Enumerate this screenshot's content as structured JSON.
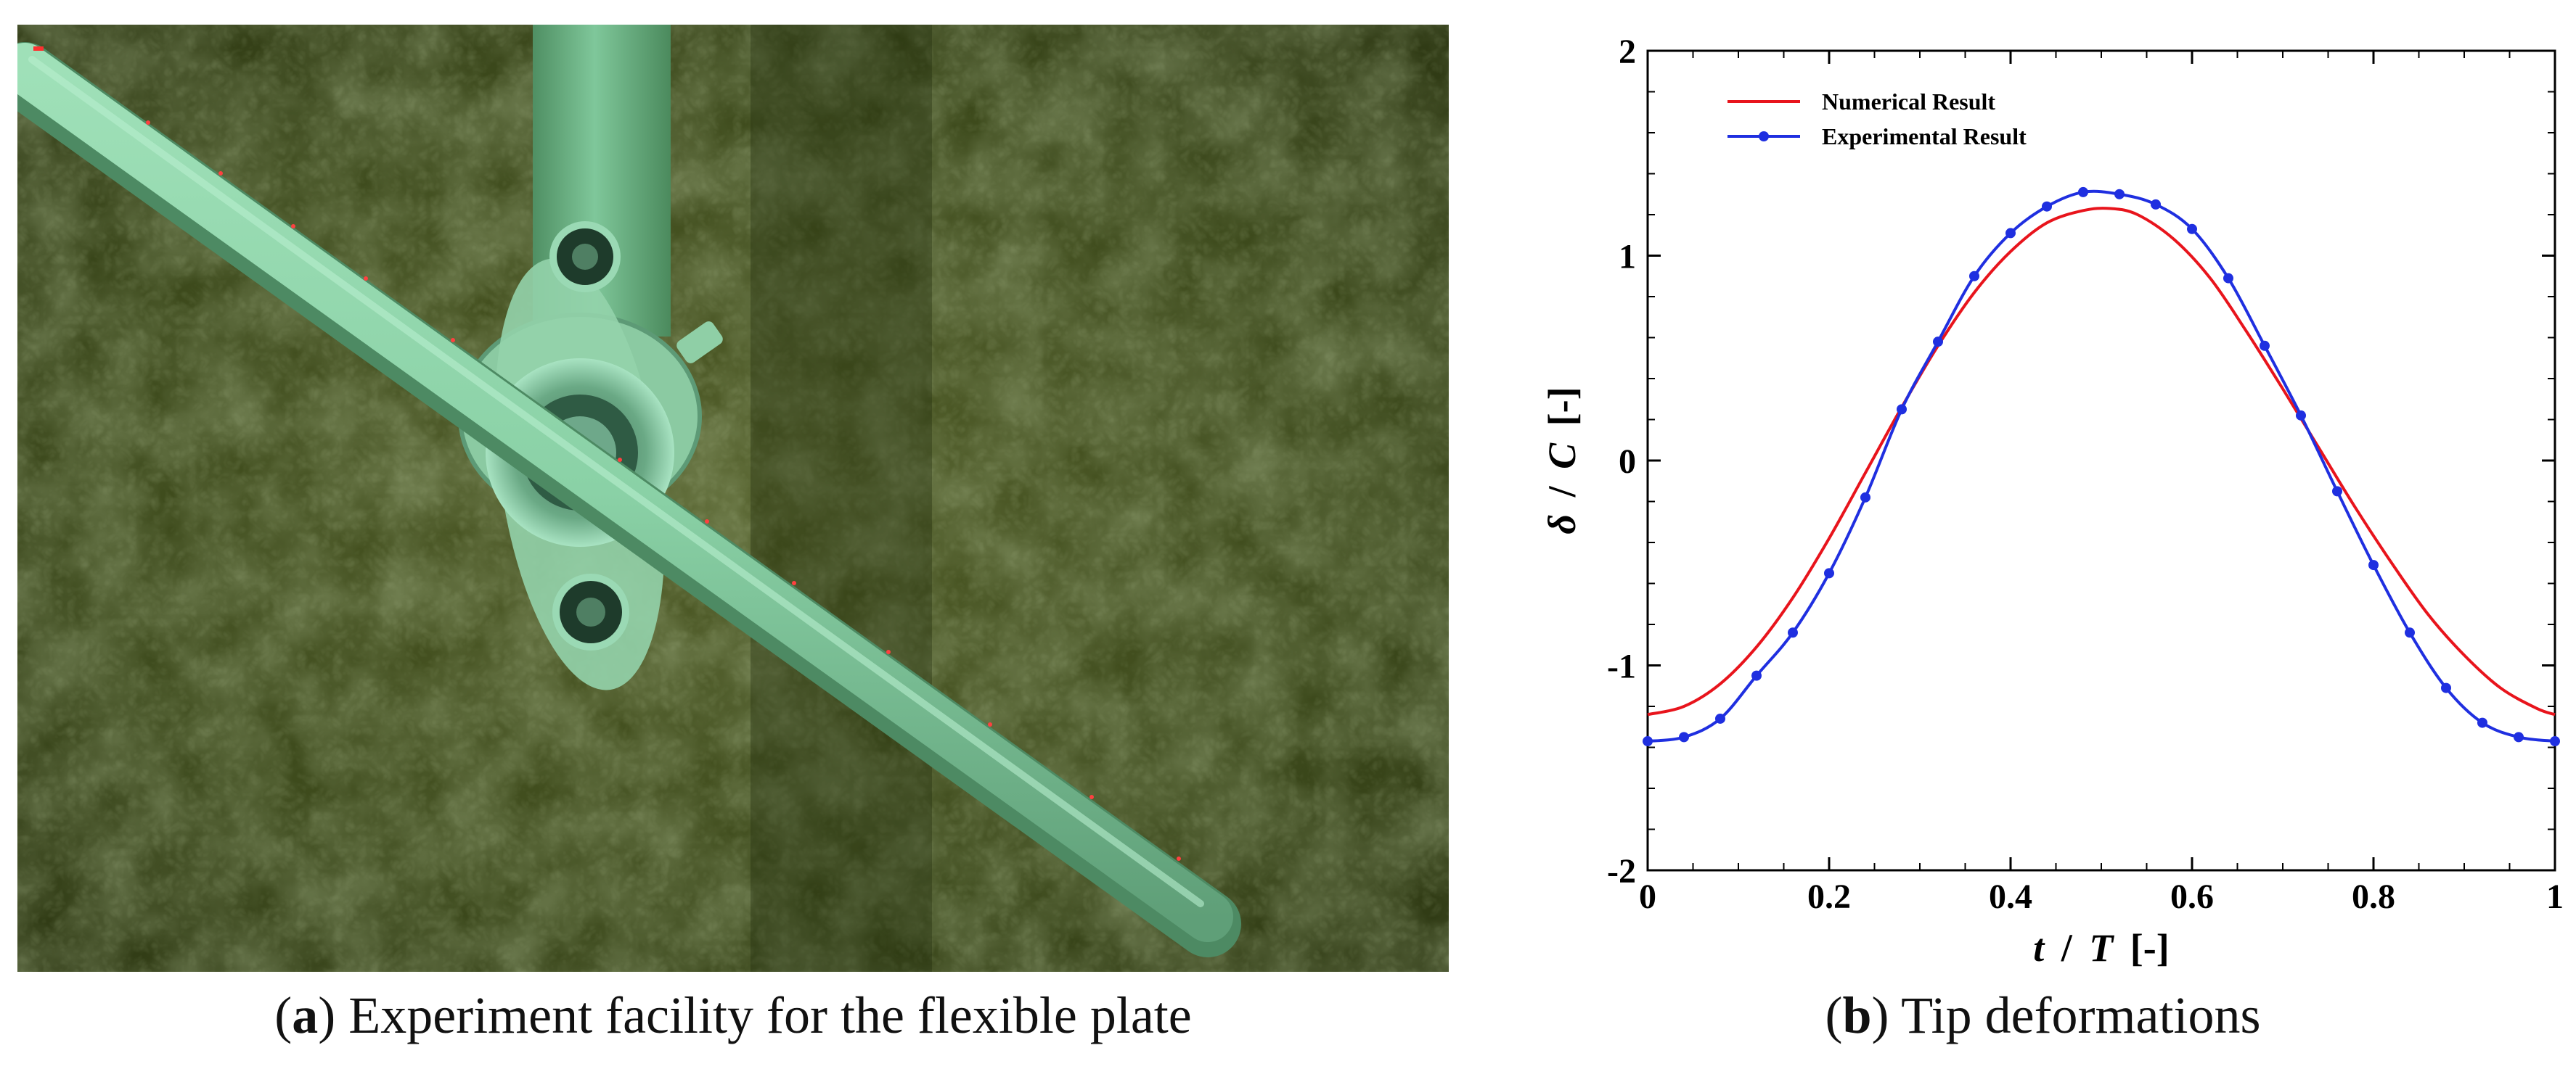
{
  "figure": {
    "panel_a": {
      "caption_letter": "a",
      "caption_text": "Experiment facility for the flexible plate"
    },
    "panel_b": {
      "caption_letter": "b",
      "caption_text": "Tip deformations"
    }
  },
  "chart_data": {
    "type": "line",
    "title": "",
    "xlabel_italic": "t",
    "xlabel_sep": "/",
    "xlabel_italic2": "T",
    "xlabel_unit": "[-]",
    "ylabel_italic": "δ",
    "ylabel_sep": "/",
    "ylabel_italic2": "C",
    "ylabel_unit": "[-]",
    "xlim": [
      0,
      1
    ],
    "ylim": [
      -2,
      2
    ],
    "xticks": [
      0,
      0.2,
      0.4,
      0.6,
      0.8,
      1
    ],
    "xtick_labels": [
      "0",
      "0.2",
      "0.4",
      "0.6",
      "0.8",
      "1"
    ],
    "yticks": [
      -2,
      -1,
      0,
      1,
      2
    ],
    "ytick_labels": [
      "-2",
      "-1",
      "0",
      "1",
      "2"
    ],
    "grid": false,
    "legend_position": "top-left",
    "series": [
      {
        "name": "Numerical Result",
        "color": "#e8141c",
        "markers": false,
        "x": [
          0,
          0.04,
          0.08,
          0.12,
          0.16,
          0.2,
          0.24,
          0.28,
          0.32,
          0.36,
          0.4,
          0.44,
          0.48,
          0.51,
          0.54,
          0.58,
          0.62,
          0.66,
          0.7,
          0.74,
          0.78,
          0.82,
          0.86,
          0.9,
          0.94,
          0.98,
          1
        ],
        "y": [
          -1.24,
          -1.2,
          -1.09,
          -0.91,
          -0.67,
          -0.38,
          -0.06,
          0.26,
          0.56,
          0.82,
          1.02,
          1.16,
          1.22,
          1.23,
          1.2,
          1.08,
          0.89,
          0.63,
          0.35,
          0.06,
          -0.23,
          -0.5,
          -0.75,
          -0.95,
          -1.11,
          -1.21,
          -1.24
        ]
      },
      {
        "name": "Experimental Result",
        "color": "#1f2fe0",
        "markers": true,
        "x": [
          0,
          0.04,
          0.08,
          0.12,
          0.16,
          0.2,
          0.24,
          0.28,
          0.32,
          0.36,
          0.4,
          0.44,
          0.48,
          0.52,
          0.56,
          0.6,
          0.64,
          0.68,
          0.72,
          0.76,
          0.8,
          0.84,
          0.88,
          0.92,
          0.96,
          1
        ],
        "y": [
          -1.37,
          -1.35,
          -1.26,
          -1.05,
          -0.84,
          -0.55,
          -0.18,
          0.25,
          0.58,
          0.9,
          1.11,
          1.24,
          1.31,
          1.3,
          1.25,
          1.13,
          0.89,
          0.56,
          0.22,
          -0.15,
          -0.51,
          -0.84,
          -1.11,
          -1.28,
          -1.35,
          -1.37
        ]
      }
    ]
  }
}
